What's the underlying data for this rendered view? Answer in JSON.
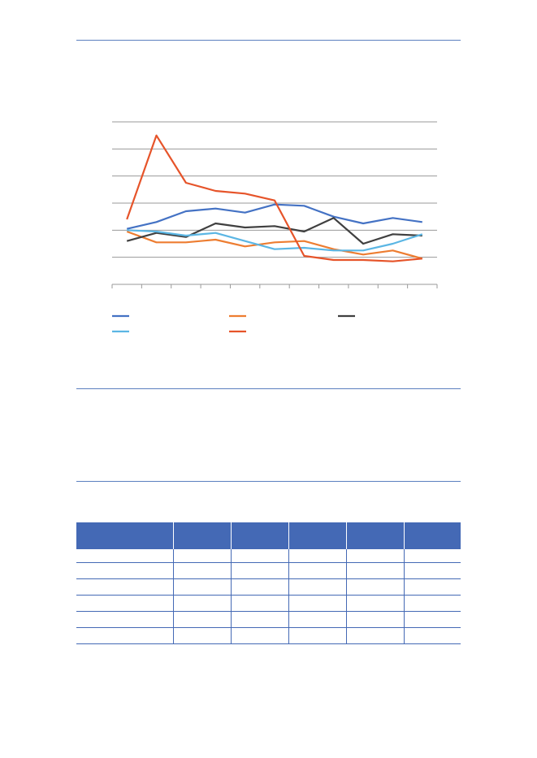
{
  "chart_data": {
    "type": "line",
    "title": "",
    "xlabel": "",
    "ylabel": "",
    "x_count": 11,
    "ylim": [
      0,
      6
    ],
    "grid": true,
    "legend_position": "bottom",
    "series": [
      {
        "color": "#4472c4",
        "values": [
          2.05,
          2.3,
          2.7,
          2.8,
          2.65,
          2.95,
          2.9,
          2.5,
          2.25,
          2.45,
          2.3
        ]
      },
      {
        "color": "#ed7d31",
        "values": [
          1.95,
          1.55,
          1.55,
          1.65,
          1.4,
          1.55,
          1.6,
          1.3,
          1.1,
          1.25,
          0.95
        ]
      },
      {
        "color": "#404040",
        "values": [
          1.6,
          1.9,
          1.75,
          2.25,
          2.1,
          2.15,
          1.95,
          2.45,
          1.5,
          1.85,
          1.8
        ]
      },
      {
        "color": "#5bb6e4",
        "values": [
          2.0,
          1.95,
          1.8,
          1.9,
          1.6,
          1.3,
          1.35,
          1.25,
          1.25,
          1.5,
          1.85
        ]
      },
      {
        "color": "#e6542a",
        "values": [
          2.4,
          5.5,
          3.75,
          3.45,
          3.35,
          3.1,
          1.05,
          0.9,
          0.9,
          0.85,
          0.95
        ]
      }
    ]
  },
  "table": {
    "header_color": "#4469b5",
    "column_count": 6,
    "row_count": 6
  }
}
